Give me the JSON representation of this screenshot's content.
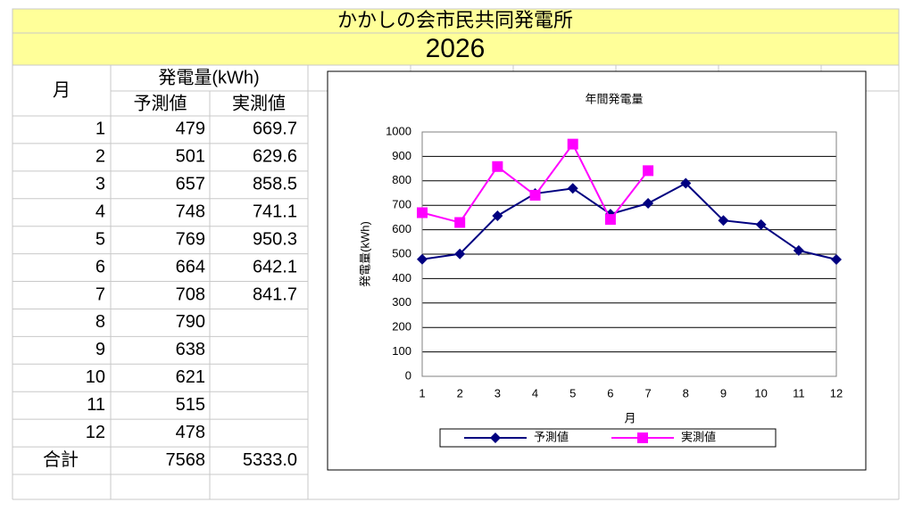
{
  "header": {
    "title": "かかしの会市民共同発電所",
    "year": "2026"
  },
  "table": {
    "month_header": "月",
    "group_header": "発電量(kWh)",
    "columns": [
      "予測値",
      "実測値"
    ],
    "rows": [
      [
        "1",
        "479",
        "669.7"
      ],
      [
        "2",
        "501",
        "629.6"
      ],
      [
        "3",
        "657",
        "858.5"
      ],
      [
        "4",
        "748",
        "741.1"
      ],
      [
        "5",
        "769",
        "950.3"
      ],
      [
        "6",
        "664",
        "642.1"
      ],
      [
        "7",
        "708",
        "841.7"
      ],
      [
        "8",
        "790"
      ],
      [
        "9",
        "638"
      ],
      [
        "10",
        "621"
      ],
      [
        "11",
        "515"
      ],
      [
        "12",
        "478"
      ]
    ],
    "total": [
      "合計",
      "7568",
      "5333.0"
    ]
  },
  "chart_data": {
    "type": "line",
    "title": "年間発電量",
    "x_label": "月",
    "y_label": "発電量(kWh)",
    "categories": [
      "1",
      "2",
      "3",
      "4",
      "5",
      "6",
      "7",
      "8",
      "9",
      "10",
      "11",
      "12"
    ],
    "series": [
      {
        "name": "予測値",
        "color": "#000080",
        "marker": "diamond",
        "values": [
          479,
          501,
          657,
          748,
          769,
          664,
          708,
          790,
          638,
          621,
          515,
          478
        ]
      },
      {
        "name": "実測値",
        "color": "#ff00ff",
        "marker": "square",
        "values": [
          669.7,
          629.6,
          858.5,
          741.1,
          950.3,
          642.1,
          841.7,
          null,
          null,
          null,
          null,
          null
        ]
      }
    ],
    "ylim": [
      0,
      1000
    ],
    "yticks": [
      0,
      100,
      200,
      300,
      400,
      500,
      600,
      700,
      800,
      900,
      1000
    ],
    "grid": true,
    "legend": "bottom"
  }
}
